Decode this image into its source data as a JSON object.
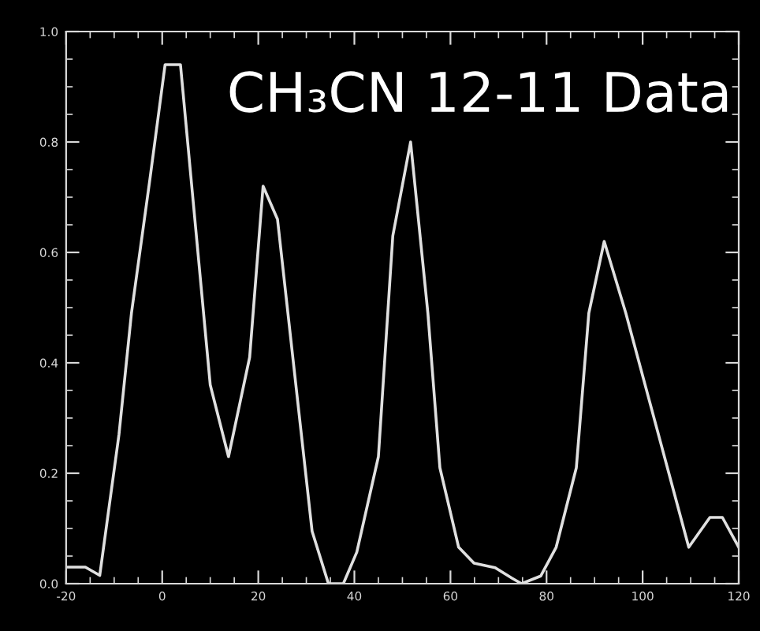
{
  "chart_data": {
    "type": "line",
    "title": "CH₃CN 12-11 Data",
    "x": [
      -20,
      -16,
      -13,
      -9,
      -6.4,
      -2.6,
      0.6,
      3.8,
      10,
      13.8,
      18.2,
      21,
      24,
      31.2,
      34.6,
      37.7,
      40.5,
      45,
      48,
      51.7,
      55.3,
      57.8,
      61.7,
      64.9,
      69.3,
      72.8,
      74.8,
      78.8,
      82,
      86.2,
      88.8,
      92,
      96.5,
      109.6,
      114,
      116.6,
      120
    ],
    "series": [
      {
        "color": "#e0e0e0",
        "values": [
          0.03,
          0.03,
          0.015,
          0.27,
          0.49,
          0.73,
          0.94,
          0.94,
          0.36,
          0.23,
          0.41,
          0.72,
          0.66,
          0.095,
          0.0,
          0.0,
          0.057,
          0.23,
          0.63,
          0.8,
          0.49,
          0.21,
          0.066,
          0.037,
          0.029,
          0.01,
          0.0,
          0.014,
          0.066,
          0.21,
          0.49,
          0.62,
          0.49,
          0.066,
          0.12,
          0.12,
          0.066
        ]
      }
    ],
    "xlim": [
      -20,
      120
    ],
    "xticks": [
      -20,
      0,
      20,
      40,
      60,
      80,
      100,
      120
    ],
    "ylim": [
      0,
      1
    ],
    "yticks": [
      {
        "value": 0,
        "label": "0.0"
      },
      {
        "value": 0.2,
        "label": "0.2"
      },
      {
        "value": 0.4,
        "label": "0.4"
      },
      {
        "value": 0.6,
        "label": "0.6"
      },
      {
        "value": 0.8,
        "label": "0.8"
      },
      {
        "value": 1.0,
        "label": "1.0"
      }
    ],
    "grid": false,
    "legend": false,
    "marker": "none",
    "line_style": "solid"
  }
}
